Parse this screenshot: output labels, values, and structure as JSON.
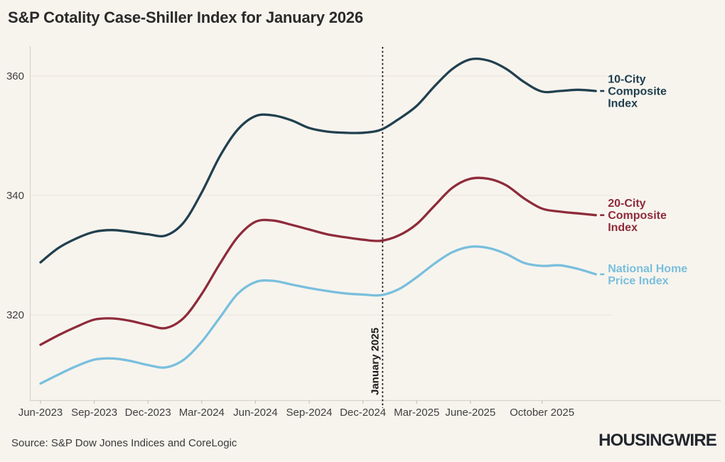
{
  "title": "S&P Cotality Case-Shiller Index for January 2026",
  "source": "Source: S&P Dow Jones Indices and CoreLogic",
  "logo": "HOUSINGWIRE",
  "colors": {
    "background": "#f7f4ee",
    "ten_city": "#21404f",
    "twenty_city": "#8e2b3a",
    "national": "#79bfdd",
    "grid": "#ebe6de",
    "axis": "#d8d3c9",
    "tick_text": "#3f3f3f",
    "annotation": "#1a1a1a"
  },
  "chart_data": {
    "type": "line",
    "title": "S&P Cotality Case-Shiller Index for January 2026",
    "xlabel": "",
    "ylabel": "",
    "grid": "horizontal-only",
    "legend_position": "right-of-line-ends",
    "ylim": [
      306,
      365
    ],
    "yticks": [
      320,
      340,
      360
    ],
    "x": [
      "Jun-2023",
      "Jul-2023",
      "Aug-2023",
      "Sep-2023",
      "Oct-2023",
      "Nov-2023",
      "Dec-2023",
      "Jan-2024",
      "Feb-2024",
      "Mar-2024",
      "Apr-2024",
      "May-2024",
      "Jun-2024",
      "Jul-2024",
      "Aug-2024",
      "Sep-2024",
      "Oct-2024",
      "Nov-2024",
      "Dec-2024",
      "Jan-2025",
      "Feb-2025",
      "Mar-2025",
      "Apr-2025",
      "May-2025",
      "Jun-2025",
      "Jul-2025",
      "Aug-2025",
      "Sep-2025",
      "Oct-2025",
      "Nov-2025",
      "Dec-2025",
      "Jan-2026"
    ],
    "x_ticks": [
      {
        "label": "Jun-2023",
        "index": 0
      },
      {
        "label": "Sep-2023",
        "index": 3
      },
      {
        "label": "Dec-2023",
        "index": 6
      },
      {
        "label": "Mar-2024",
        "index": 9
      },
      {
        "label": "Jun-2024",
        "index": 12
      },
      {
        "label": "Sep-2024",
        "index": 15
      },
      {
        "label": "Dec-2024",
        "index": 18
      },
      {
        "label": "Mar-2025",
        "index": 21
      },
      {
        "label": "June-2025",
        "index": 24
      },
      {
        "label": "October 2025",
        "index": 28
      }
    ],
    "annotation": {
      "label": "January 2025",
      "x_index": 19,
      "style": "vertical-dotted-line"
    },
    "series": [
      {
        "name": "10-City Composite Index",
        "label_lines": [
          "10-City",
          "Composite",
          "Index"
        ],
        "color": "#21404f",
        "values": [
          328.8,
          331.2,
          332.8,
          333.9,
          334.2,
          333.9,
          333.5,
          333.3,
          335.5,
          340.5,
          346.5,
          351.0,
          353.3,
          353.4,
          352.6,
          351.3,
          350.7,
          350.5,
          350.5,
          351.0,
          352.8,
          355.0,
          358.3,
          361.2,
          362.8,
          362.6,
          361.2,
          359.0,
          357.4,
          357.5,
          357.7,
          357.5
        ]
      },
      {
        "name": "20-City Composite Index",
        "label_lines": [
          "20-City",
          "Composite",
          "Index"
        ],
        "color": "#8e2b3a",
        "values": [
          315.0,
          316.6,
          318.0,
          319.2,
          319.4,
          319.0,
          318.3,
          317.8,
          319.5,
          323.5,
          328.5,
          333.0,
          335.6,
          335.8,
          335.1,
          334.3,
          333.5,
          333.0,
          332.6,
          332.4,
          333.3,
          335.2,
          338.3,
          341.3,
          342.8,
          342.8,
          341.7,
          339.5,
          337.8,
          337.3,
          337.0,
          336.7
        ]
      },
      {
        "name": "National Home Price Index",
        "label_lines": [
          "National Home",
          "Price Index"
        ],
        "color": "#79bfdd",
        "values": [
          308.5,
          310.0,
          311.4,
          312.5,
          312.7,
          312.3,
          311.6,
          311.2,
          312.5,
          315.5,
          319.5,
          323.5,
          325.5,
          325.7,
          325.1,
          324.5,
          324.0,
          323.6,
          323.4,
          323.3,
          324.3,
          326.3,
          328.6,
          330.5,
          331.4,
          331.2,
          330.2,
          328.7,
          328.2,
          328.3,
          327.7,
          326.8
        ]
      }
    ]
  }
}
